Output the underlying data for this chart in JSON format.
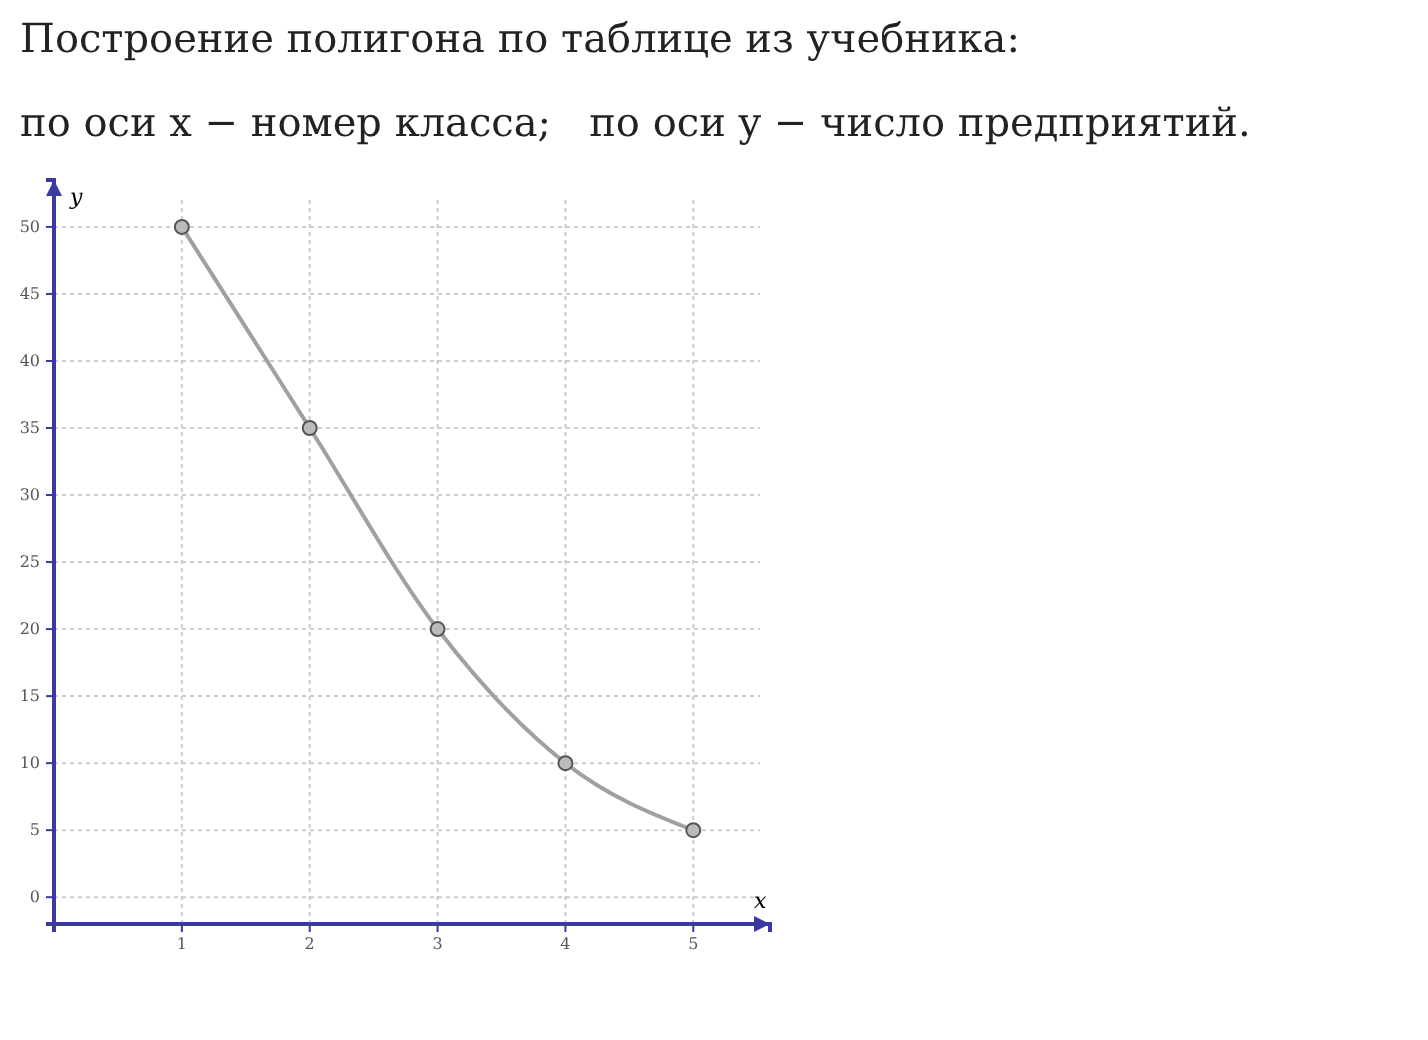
{
  "chart_data": {
    "type": "line",
    "title": "Построение полигона по таблице из учебника:",
    "subtitle": "по оси x − номер класса;   по оси y − число предприятий.",
    "xlabel": "x",
    "ylabel": "y",
    "x": [
      1,
      2,
      3,
      4,
      5
    ],
    "series": [
      {
        "color": "#a0a0a0",
        "values": [
          50,
          35,
          20,
          10,
          5
        ]
      }
    ],
    "xlim": [
      0,
      5.6
    ],
    "xticks": [
      1,
      2,
      3,
      4,
      5
    ],
    "ylim": [
      -2,
      53.5
    ],
    "yticks": [
      0,
      5,
      10,
      15,
      20,
      25,
      30,
      35,
      40,
      45,
      50
    ],
    "grid": true,
    "marker": "circle",
    "line_style": "solid"
  }
}
